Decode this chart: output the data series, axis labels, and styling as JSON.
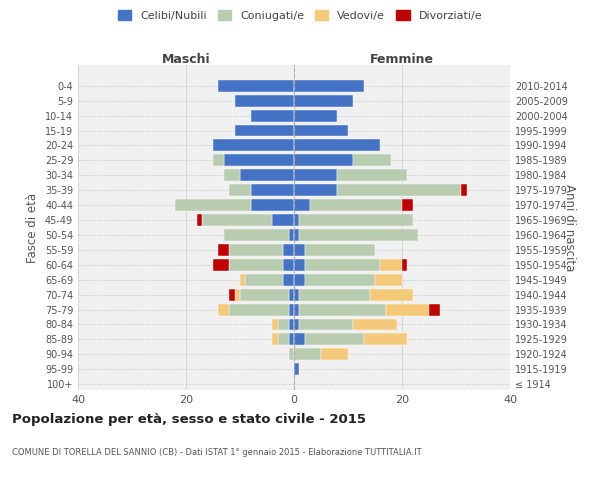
{
  "age_groups": [
    "100+",
    "95-99",
    "90-94",
    "85-89",
    "80-84",
    "75-79",
    "70-74",
    "65-69",
    "60-64",
    "55-59",
    "50-54",
    "45-49",
    "40-44",
    "35-39",
    "30-34",
    "25-29",
    "20-24",
    "15-19",
    "10-14",
    "5-9",
    "0-4"
  ],
  "birth_years": [
    "≤ 1914",
    "1915-1919",
    "1920-1924",
    "1925-1929",
    "1930-1934",
    "1935-1939",
    "1940-1944",
    "1945-1949",
    "1950-1954",
    "1955-1959",
    "1960-1964",
    "1965-1969",
    "1970-1974",
    "1975-1979",
    "1980-1984",
    "1985-1989",
    "1990-1994",
    "1995-1999",
    "2000-2004",
    "2005-2009",
    "2010-2014"
  ],
  "colors": {
    "celibi": "#4472C4",
    "coniugati": "#B8CCB0",
    "vedovi": "#F5C97A",
    "divorziati": "#C00000"
  },
  "maschi": {
    "celibi": [
      0,
      0,
      0,
      1,
      1,
      1,
      1,
      2,
      2,
      2,
      1,
      4,
      8,
      8,
      10,
      13,
      15,
      11,
      8,
      11,
      14
    ],
    "coniugati": [
      0,
      0,
      1,
      2,
      2,
      11,
      9,
      7,
      10,
      10,
      12,
      13,
      14,
      4,
      3,
      2,
      0,
      0,
      0,
      0,
      0
    ],
    "vedovi": [
      0,
      0,
      0,
      1,
      1,
      2,
      1,
      1,
      0,
      0,
      0,
      0,
      0,
      0,
      0,
      0,
      0,
      0,
      0,
      0,
      0
    ],
    "divorziati": [
      0,
      0,
      0,
      0,
      0,
      0,
      1,
      0,
      3,
      2,
      0,
      1,
      0,
      0,
      0,
      0,
      0,
      0,
      0,
      0,
      0
    ]
  },
  "femmine": {
    "celibi": [
      0,
      1,
      0,
      2,
      1,
      1,
      1,
      2,
      2,
      2,
      1,
      1,
      3,
      8,
      8,
      11,
      16,
      10,
      8,
      11,
      13
    ],
    "coniugati": [
      0,
      0,
      5,
      11,
      10,
      16,
      13,
      13,
      14,
      13,
      22,
      21,
      17,
      23,
      13,
      7,
      0,
      0,
      0,
      0,
      0
    ],
    "vedovi": [
      0,
      0,
      5,
      8,
      8,
      8,
      8,
      5,
      4,
      0,
      0,
      0,
      0,
      0,
      0,
      0,
      0,
      0,
      0,
      0,
      0
    ],
    "divorziati": [
      0,
      0,
      0,
      0,
      0,
      2,
      0,
      0,
      1,
      0,
      0,
      0,
      2,
      1,
      0,
      0,
      0,
      0,
      0,
      0,
      0
    ]
  },
  "xlim": [
    -40,
    40
  ],
  "xticks": [
    -40,
    -20,
    0,
    20,
    40
  ],
  "xticklabels": [
    "40",
    "20",
    "0",
    "20",
    "40"
  ],
  "title": "Popolazione per età, sesso e stato civile - 2015",
  "subtitle": "COMUNE DI TORELLA DEL SANNIO (CB) - Dati ISTAT 1° gennaio 2015 - Elaborazione TUTTITALIA.IT",
  "ylabel_left": "Fasce di età",
  "ylabel_right": "Anni di nascita",
  "header_left": "Maschi",
  "header_right": "Femmine",
  "legend_labels": [
    "Celibi/Nubili",
    "Coniugati/e",
    "Vedovi/e",
    "Divorziati/e"
  ],
  "bar_height": 0.8,
  "background_color": "#f0f0f0"
}
